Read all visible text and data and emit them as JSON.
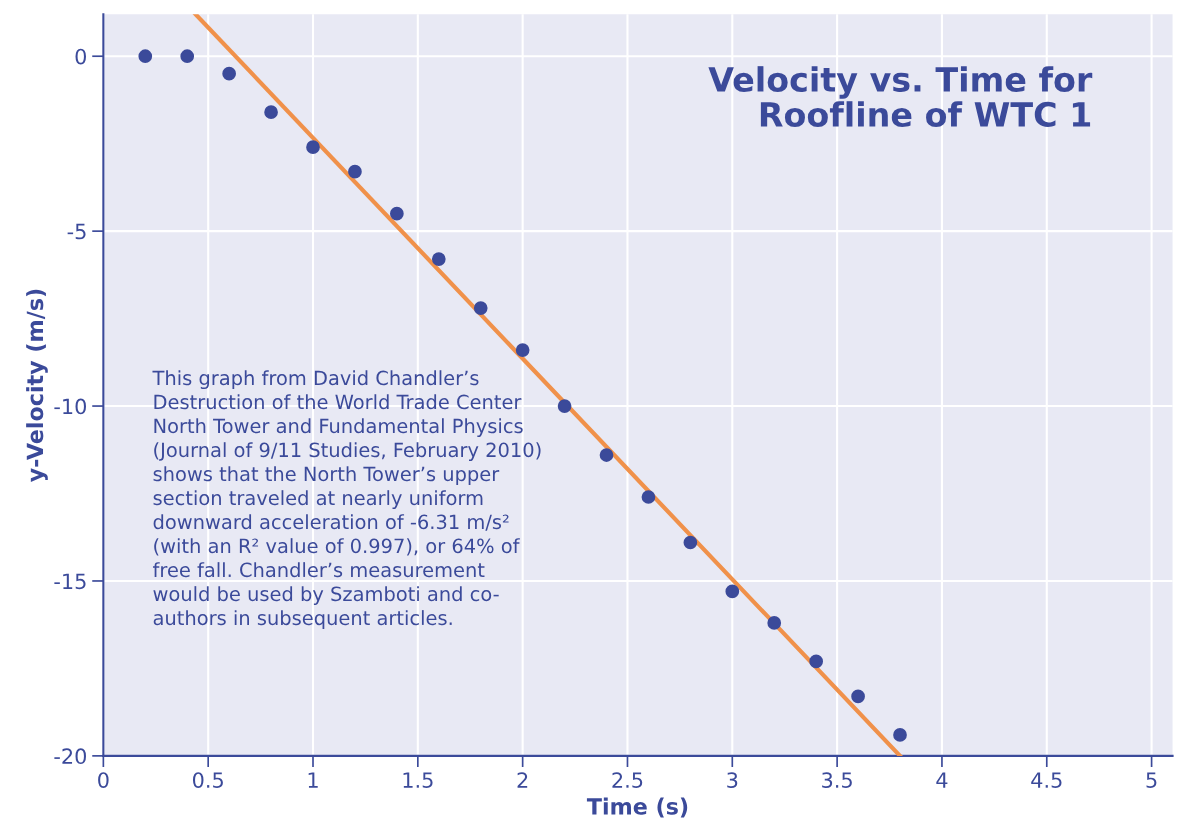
{
  "chart_data": {
    "type": "scatter",
    "title": "Velocity vs. Time for\nRoofline of WTC 1",
    "xlabel": "Time (s)",
    "ylabel": "y-Velocity (m/s)",
    "xlim": [
      0,
      5.1
    ],
    "ylim": [
      -20,
      1.2
    ],
    "xticks": [
      0,
      0.5,
      1,
      1.5,
      2,
      2.5,
      3,
      3.5,
      4,
      4.5,
      5
    ],
    "yticks": [
      0,
      -5,
      -10,
      -15,
      -20
    ],
    "grid": true,
    "marker": "circle",
    "series": [
      {
        "color": "#3b4a9a",
        "x": [
          0.2,
          0.4,
          0.6,
          0.8,
          1.0
        ],
        "values": [
          0,
          0,
          -0.5,
          -1.6,
          -2.6
        ]
      },
      {
        "color": "#3b4a9a",
        "x": [
          1.2,
          1.4,
          1.6,
          1.8,
          2.0,
          2.2,
          2.4,
          2.6,
          2.8,
          3.0,
          3.2,
          3.4,
          3.6,
          3.8
        ],
        "values": [
          -3.3,
          -4.5,
          -5.8,
          -7.2,
          -8.4,
          -10.0,
          -11.4,
          -12.6,
          -13.9,
          -15.3,
          -16.2,
          -17.3,
          -18.3,
          -19.4
        ]
      },
      {
        "type": "line",
        "marker": "none",
        "color": "#f0914a",
        "x": [
          0.44,
          3.8
        ],
        "values": [
          1.2,
          -20
        ]
      }
    ],
    "annotations": [
      "This graph from David Chandler’s\nDestruction of the World Trade Center\nNorth Tower and Fundamental Physics\n(Journal of 9/11 Studies, February 2010)\nshows that the North Tower’s upper\nsection traveled at nearly uniform\ndownward acceleration of -6.31 m/s²\n(with an R² value of 0.997), or 64% of\nfree fall. Chandler’s measurement\nwould be used by Szamboti and co-\nauthors in subsequent articles."
    ]
  }
}
